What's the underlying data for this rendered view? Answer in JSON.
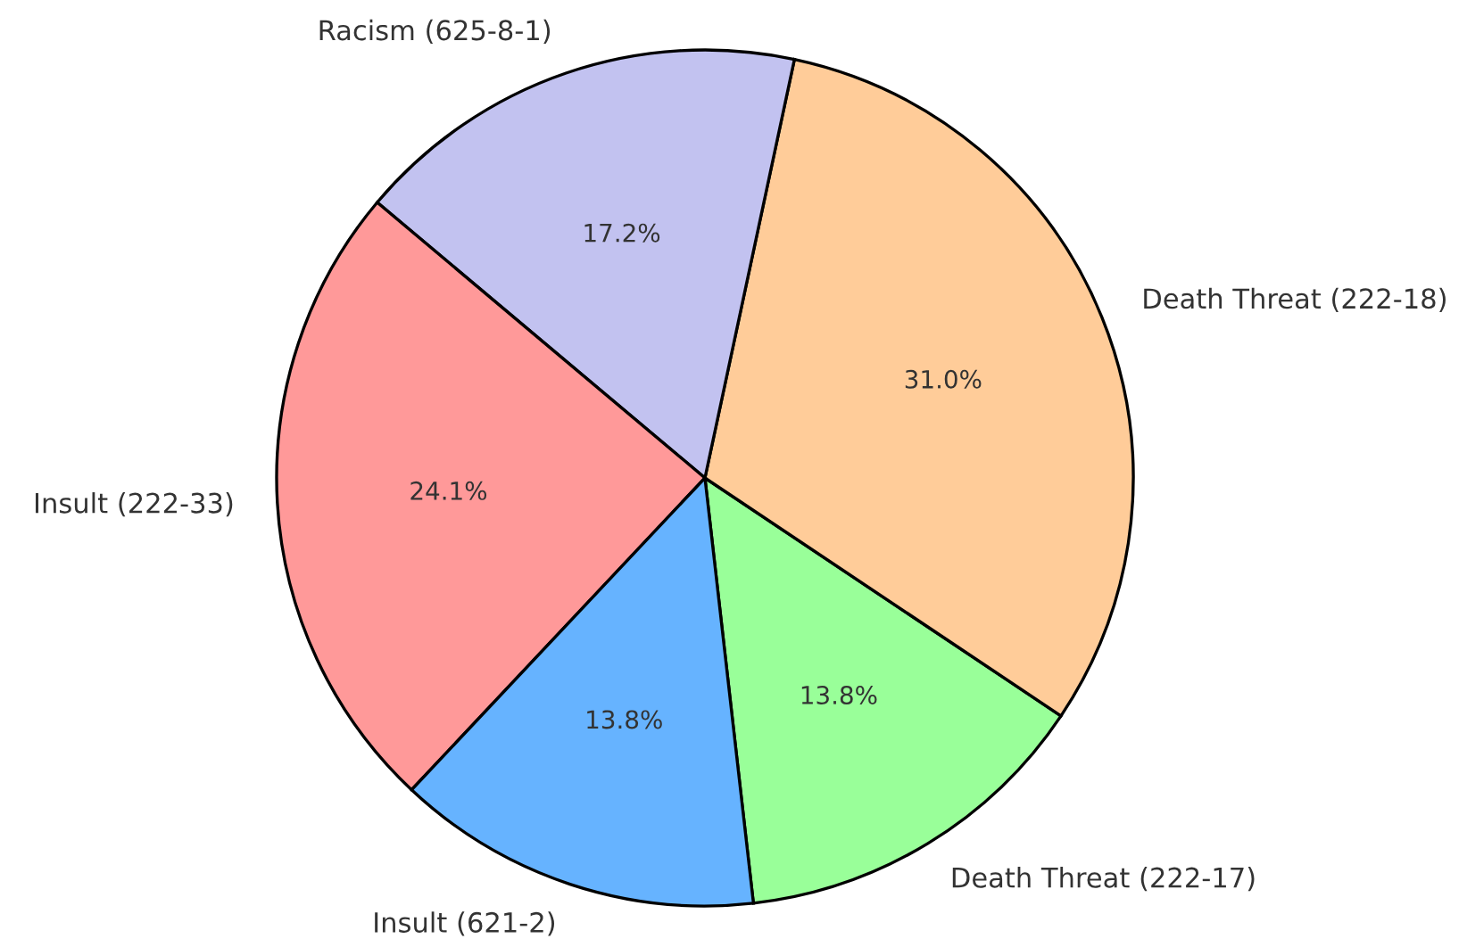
{
  "chart_data": {
    "type": "pie",
    "categories": [
      "Death Threat (222-17)",
      "Death Threat (222-18)",
      "Racism (625-8-1)",
      "Insult (222-33)",
      "Insult (621-2)"
    ],
    "values": [
      13.8,
      31.0,
      17.2,
      24.1,
      13.8
    ],
    "colors": [
      "#99ff99",
      "#ffcc99",
      "#c2c2f0",
      "#ff9999",
      "#66b3ff"
    ],
    "value_labels": [
      "13.8%",
      "31.0%",
      "17.2%",
      "24.1%",
      "13.8%"
    ],
    "legend": false
  }
}
